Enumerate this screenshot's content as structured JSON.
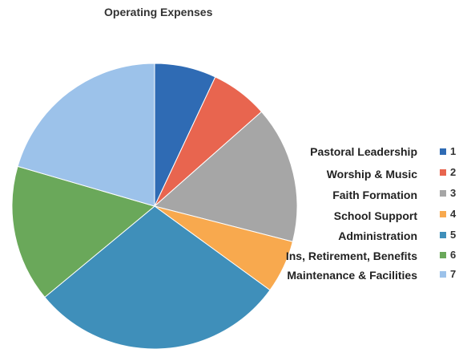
{
  "chart_data": {
    "type": "pie",
    "title": "Operating Expenses",
    "categories": [
      "Pastoral Leadership",
      "Worship & Music",
      "Faith Formation",
      "School Support",
      "Administration",
      "Ins, Retirement, Benefits",
      "Maintenance & Facilities"
    ],
    "legend_entries": [
      "1",
      "2",
      "3",
      "4",
      "5",
      "6",
      "7"
    ],
    "values": [
      7,
      6.5,
      15.5,
      6,
      29,
      15.5,
      20.5
    ],
    "colors": [
      "#2F6BB4",
      "#E8654F",
      "#A6A6A6",
      "#F8A94E",
      "#3F8FBA",
      "#6AA85A",
      "#9CC2EA"
    ],
    "legend_placement": "right"
  }
}
